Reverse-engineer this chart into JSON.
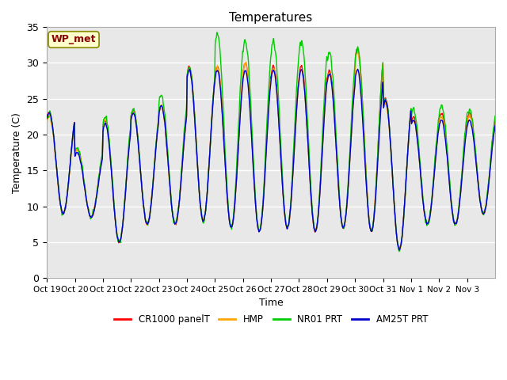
{
  "title": "Temperatures",
  "ylabel": "Temperature (C)",
  "xlabel": "Time",
  "station_label": "WP_met",
  "ylim": [
    0,
    35
  ],
  "legend": [
    {
      "label": "CR1000 panelT",
      "color": "#ff0000"
    },
    {
      "label": "HMP",
      "color": "#ffa500"
    },
    {
      "label": "NR01 PRT",
      "color": "#00cc00"
    },
    {
      "label": "AM25T PRT",
      "color": "#0000cc"
    }
  ],
  "xtick_labels": [
    "Oct 19",
    "Oct 20",
    "Oct 21",
    "Oct 22",
    "Oct 23",
    "Oct 24",
    "Oct 25",
    "Oct 26",
    "Oct 27",
    "Oct 28",
    "Oct 29",
    "Oct 30",
    "Oct 31",
    "Nov 1",
    "Nov 2",
    "Nov 3"
  ],
  "ytick_labels": [
    "0",
    "5",
    "10",
    "15",
    "20",
    "25",
    "30",
    "35"
  ],
  "ytick_vals": [
    0,
    5,
    10,
    15,
    20,
    25,
    30,
    35
  ],
  "bg_color": "#e8e8e8",
  "grid_color": "#ffffff",
  "fig_bg": "#ffffff",
  "daily_min": [
    9.0,
    8.5,
    5.0,
    7.5,
    7.5,
    8.0,
    7.0,
    6.5,
    7.0,
    6.5,
    7.0,
    6.5,
    4.0,
    7.5,
    7.5,
    9.0
  ],
  "daily_max_cr": [
    23.0,
    18.0,
    22.0,
    23.5,
    24.0,
    29.5,
    29.5,
    30.0,
    29.5,
    29.5,
    29.0,
    32.0,
    25.0,
    22.5,
    23.0,
    23.0
  ],
  "daily_max_hmp": [
    22.5,
    17.8,
    22.0,
    23.0,
    24.0,
    29.0,
    29.5,
    30.0,
    29.0,
    29.0,
    28.5,
    31.5,
    24.5,
    22.0,
    22.5,
    22.5
  ],
  "daily_max_nr01": [
    23.0,
    18.2,
    22.5,
    23.5,
    25.5,
    29.5,
    34.0,
    33.0,
    33.0,
    33.0,
    31.5,
    32.0,
    25.0,
    23.5,
    24.0,
    23.5
  ],
  "daily_max_am25": [
    23.0,
    17.5,
    21.5,
    23.0,
    24.0,
    29.0,
    29.0,
    29.0,
    29.0,
    29.0,
    28.5,
    29.0,
    24.8,
    22.0,
    22.0,
    22.0
  ]
}
